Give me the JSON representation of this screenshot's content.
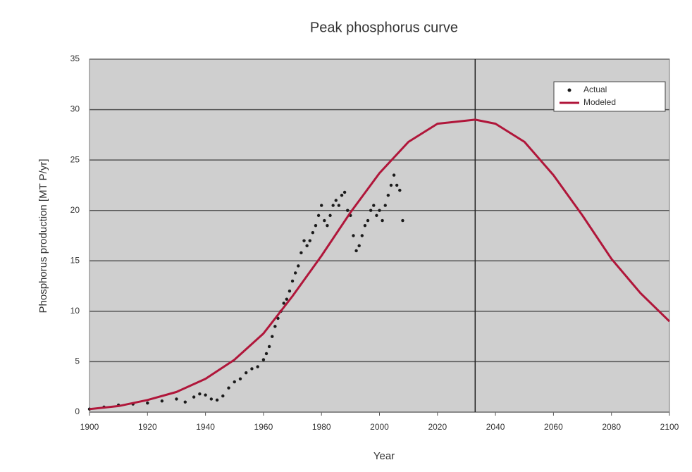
{
  "chart_data": {
    "type": "line",
    "title": "Peak phosphorus curve",
    "x_label": "Year",
    "y_label": "Phosphorus production [MT P/yr]",
    "xlim": [
      1900,
      2100
    ],
    "xticks": [
      1900,
      1920,
      1940,
      1960,
      1980,
      2000,
      2020,
      2040,
      2060,
      2080,
      2100
    ],
    "ylim": [
      0,
      35
    ],
    "yticks": [
      0,
      5,
      10,
      15,
      20,
      25,
      30,
      35
    ],
    "grid": true,
    "legend": "upper right",
    "vline": 2033,
    "series": [
      {
        "name": "Actual",
        "color": "#1a1a1a",
        "marker": "dot",
        "x": [
          1900,
          1905,
          1910,
          1915,
          1920,
          1925,
          1930,
          1933,
          1936,
          1938,
          1940,
          1942,
          1944,
          1946,
          1948,
          1950,
          1952,
          1954,
          1956,
          1958,
          1960,
          1961,
          1962,
          1963,
          1964,
          1965,
          1966,
          1967,
          1968,
          1969,
          1970,
          1971,
          1972,
          1973,
          1974,
          1975,
          1976,
          1977,
          1978,
          1979,
          1980,
          1981,
          1982,
          1983,
          1984,
          1985,
          1986,
          1987,
          1988,
          1989,
          1990,
          1991,
          1992,
          1993,
          1994,
          1995,
          1996,
          1997,
          1998,
          1999,
          2000,
          2001,
          2002,
          2003,
          2004,
          2005,
          2006,
          2007,
          2008
        ],
        "values": [
          0.3,
          0.5,
          0.7,
          0.8,
          0.9,
          1.1,
          1.3,
          1.0,
          1.5,
          1.8,
          1.7,
          1.3,
          1.2,
          1.6,
          2.4,
          3.0,
          3.3,
          3.9,
          4.3,
          4.5,
          5.2,
          5.8,
          6.5,
          7.5,
          8.5,
          9.3,
          10.0,
          10.8,
          11.2,
          12.0,
          13.0,
          13.8,
          14.5,
          15.8,
          17.0,
          16.5,
          17.0,
          17.8,
          18.5,
          19.5,
          20.5,
          19.0,
          18.5,
          19.5,
          20.5,
          21.0,
          20.5,
          21.5,
          21.8,
          20.0,
          19.5,
          17.5,
          16.0,
          16.5,
          17.5,
          18.5,
          19.0,
          20.0,
          20.5,
          19.5,
          20.0,
          19.0,
          20.5,
          21.5,
          22.5,
          23.5,
          22.5,
          22.0,
          19.0
        ]
      },
      {
        "name": "Modeled",
        "color": "#b0163a",
        "marker": "line",
        "x": [
          1900,
          1910,
          1920,
          1930,
          1940,
          1950,
          1960,
          1970,
          1980,
          1990,
          2000,
          2010,
          2020,
          2033,
          2040,
          2050,
          2060,
          2070,
          2080,
          2090,
          2100
        ],
        "values": [
          0.3,
          0.6,
          1.2,
          2.0,
          3.3,
          5.2,
          7.8,
          11.5,
          15.5,
          19.8,
          23.7,
          26.8,
          28.6,
          29.0,
          28.6,
          26.8,
          23.5,
          19.5,
          15.2,
          11.8,
          9.0
        ]
      }
    ]
  }
}
